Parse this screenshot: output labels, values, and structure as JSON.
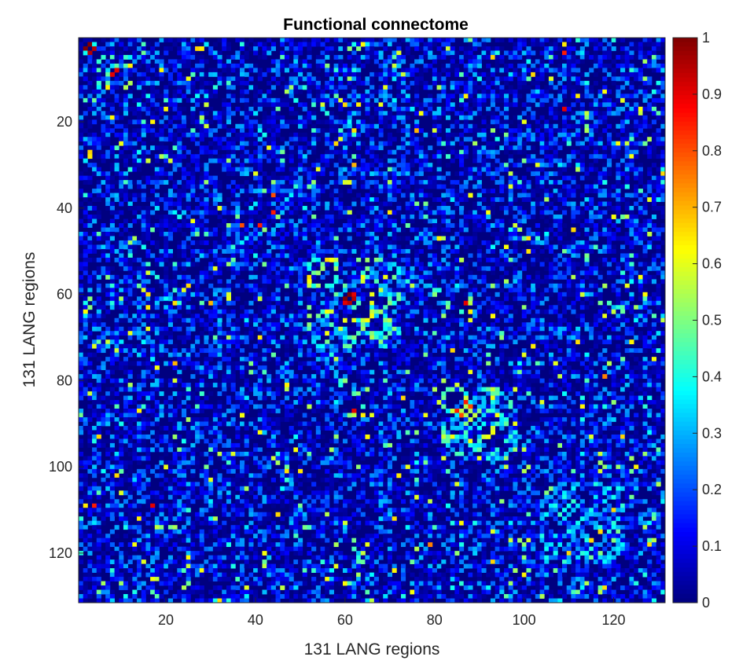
{
  "chart_data": {
    "type": "heatmap",
    "title": "Functional connectome",
    "xlabel": "131 LANG regions",
    "ylabel": "131 LANG regions",
    "n_regions": 131,
    "xlim": [
      1,
      131
    ],
    "ylim": [
      1,
      131
    ],
    "y_direction": "reverse",
    "x_ticks": [
      20,
      40,
      60,
      80,
      100,
      120
    ],
    "y_ticks": [
      20,
      40,
      60,
      80,
      100,
      120
    ],
    "colormap": "jet",
    "color_limits": [
      0,
      1
    ],
    "colorbar_ticks": [
      0,
      0.1,
      0.2,
      0.3,
      0.4,
      0.5,
      0.6,
      0.7,
      0.8,
      0.9,
      1
    ],
    "colorbar_placement": "right",
    "diagonal_value": 0,
    "blocks": [
      {
        "range": [
          1,
          4
        ],
        "strength": 0.7
      },
      {
        "range": [
          5,
          12
        ],
        "strength": 0.45
      },
      {
        "range": [
          52,
          72
        ],
        "strength": 0.5
      },
      {
        "range": [
          82,
          98
        ],
        "strength": 0.5
      },
      {
        "range": [
          104,
          122
        ],
        "strength": 0.35
      },
      {
        "range": [
          127,
          131
        ],
        "strength": 0.6
      }
    ],
    "highlights": [
      {
        "i": 2,
        "j": 3,
        "value": 1.0
      },
      {
        "i": 3,
        "j": 4,
        "value": 0.95
      },
      {
        "i": 8,
        "j": 9,
        "value": 0.9
      },
      {
        "i": 60,
        "j": 61,
        "value": 1.0
      },
      {
        "i": 61,
        "j": 62,
        "value": 0.95
      },
      {
        "i": 60,
        "j": 62,
        "value": 0.9
      },
      {
        "i": 85,
        "j": 87,
        "value": 0.85
      },
      {
        "i": 86,
        "j": 88,
        "value": 0.8
      },
      {
        "i": 22,
        "j": 76,
        "value": 0.7
      },
      {
        "i": 41,
        "j": 44,
        "value": 0.85
      },
      {
        "i": 17,
        "j": 109,
        "value": 0.9
      },
      {
        "i": 4,
        "j": 109,
        "value": 0.85
      },
      {
        "i": 37,
        "j": 44,
        "value": 0.8
      },
      {
        "i": 62,
        "j": 30,
        "value": 0.7
      },
      {
        "i": 87,
        "j": 62,
        "value": 0.9
      },
      {
        "i": 118,
        "j": 79,
        "value": 0.75
      }
    ]
  }
}
